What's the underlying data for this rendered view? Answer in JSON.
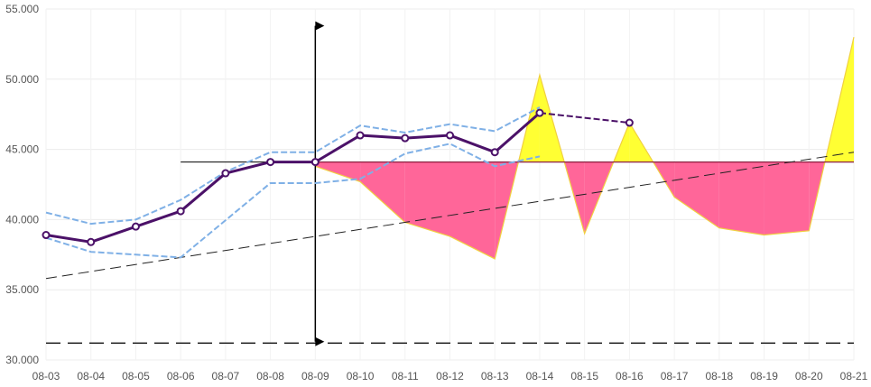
{
  "chart_data": {
    "type": "line",
    "categories": [
      "08-03",
      "08-04",
      "08-05",
      "08-06",
      "08-07",
      "08-08",
      "08-09",
      "08-10",
      "08-11",
      "08-12",
      "08-13",
      "08-14",
      "08-15",
      "08-16",
      "08-17",
      "08-18",
      "08-19",
      "08-20",
      "08-21"
    ],
    "ylim": [
      30,
      55
    ],
    "y_ticks": [
      30,
      35,
      40,
      45,
      50,
      55
    ],
    "y_tick_labels": [
      "30.000",
      "35.000",
      "40.000",
      "45.000",
      "50.000",
      "55.000"
    ],
    "grid": true,
    "series": [
      {
        "role": "main",
        "color": "#4b1168",
        "values": [
          38.9,
          38.4,
          39.5,
          40.6,
          43.3,
          44.1,
          44.1,
          46.0,
          45.8,
          46.0,
          44.8,
          47.6,
          null,
          46.9,
          null,
          null,
          null,
          null,
          null
        ],
        "dashed_from": "08-14"
      },
      {
        "role": "upper-band",
        "color": "#7fb0e6",
        "values": [
          40.5,
          39.7,
          40.0,
          41.4,
          43.4,
          44.8,
          44.8,
          46.7,
          46.2,
          46.8,
          46.3,
          48.0,
          null,
          null,
          null,
          null,
          null,
          null,
          null
        ]
      },
      {
        "role": "lower-band",
        "color": "#7fb0e6",
        "values": [
          38.7,
          37.7,
          37.5,
          37.3,
          null,
          42.6,
          42.6,
          42.9,
          44.7,
          45.4,
          43.8,
          44.5,
          null,
          null,
          null,
          null,
          null,
          null,
          null
        ]
      }
    ],
    "fill_series": {
      "baseline": 44.1,
      "values": [
        null,
        null,
        null,
        null,
        null,
        null,
        43.8,
        42.7,
        39.8,
        38.8,
        37.2,
        50.3,
        39.0,
        46.9,
        41.6,
        39.4,
        38.9,
        39.2,
        53.0
      ],
      "above_color": "#ffff33",
      "below_color": "#ff6699",
      "edge_color": "#f0d040"
    },
    "reference_lines": {
      "horizontal_baseline": {
        "y": 44.1,
        "x_from": "08-06",
        "x_to": "08-21",
        "below_color": "#000000",
        "over_fill_color": "#8a2040"
      },
      "trend_line": {
        "from": [
          "08-03",
          35.8
        ],
        "to": [
          "08-21",
          44.8
        ],
        "dashed": true
      },
      "bottom_line": {
        "y": 31.2,
        "x_from": "08-03",
        "x_to": "08-21",
        "dashed": true
      },
      "vertical_arrow": {
        "x": "08-09",
        "y_from": 31.3,
        "y_to": 53.8
      }
    }
  }
}
